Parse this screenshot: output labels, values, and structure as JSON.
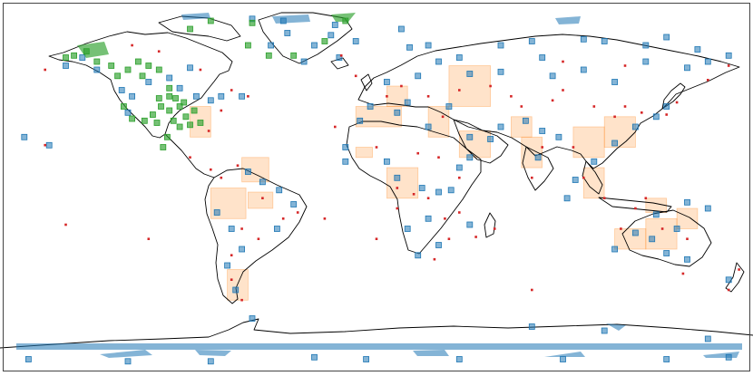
{
  "map": {
    "projection": "plate-carree",
    "extent": {
      "lon_range": [
        -180,
        180
      ],
      "lat_range": [
        -90,
        90
      ]
    },
    "coastline_color": "#000000",
    "frame_color": "#444444",
    "background": "#ffffff"
  },
  "legend": {
    "visible": false
  },
  "styles": {
    "blue": {
      "fill": "#1f77b4",
      "stroke": "#1f77b4",
      "opacity": 0.55
    },
    "green": {
      "fill": "#2ca02c",
      "stroke": "#2ca02c",
      "opacity": 0.65
    },
    "orange": {
      "fill": "#ff7f0e",
      "stroke": "#ff7f0e",
      "opacity": 0.22
    },
    "red_point": {
      "fill": "#d62728"
    }
  },
  "layers": {
    "blue_sites": [
      [
        -170,
        25
      ],
      [
        -158,
        21
      ],
      [
        -150,
        60
      ],
      [
        -142,
        64
      ],
      [
        -135,
        58
      ],
      [
        -123,
        48
      ],
      [
        -120,
        37
      ],
      [
        -118,
        45
      ],
      [
        -110,
        52
      ],
      [
        -100,
        54
      ],
      [
        -95,
        49
      ],
      [
        -90,
        59
      ],
      [
        -87,
        45
      ],
      [
        -80,
        43
      ],
      [
        -75,
        45
      ],
      [
        -65,
        45
      ],
      [
        -70,
        -20
      ],
      [
        -77,
        -12
      ],
      [
        -62,
        8
      ],
      [
        -55,
        3
      ],
      [
        -47,
        -1
      ],
      [
        -40,
        -8
      ],
      [
        -48,
        -20
      ],
      [
        -65,
        -30
      ],
      [
        -72,
        -38
      ],
      [
        -68,
        -50
      ],
      [
        -60,
        -64
      ],
      [
        -35,
        62
      ],
      [
        -30,
        70
      ],
      [
        -18,
        64
      ],
      [
        -51,
        70
      ],
      [
        -43,
        76
      ],
      [
        -20,
        80
      ],
      [
        -22,
        75
      ],
      [
        -10,
        72
      ],
      [
        -60,
        83
      ],
      [
        -45,
        82
      ],
      [
        12,
        78
      ],
      [
        16,
        69
      ],
      [
        25,
        70
      ],
      [
        30,
        62
      ],
      [
        40,
        64
      ],
      [
        60,
        70
      ],
      [
        75,
        72
      ],
      [
        100,
        73
      ],
      [
        110,
        72
      ],
      [
        130,
        70
      ],
      [
        140,
        74
      ],
      [
        155,
        68
      ],
      [
        160,
        62
      ],
      [
        170,
        65
      ],
      [
        150,
        59
      ],
      [
        130,
        62
      ],
      [
        100,
        58
      ],
      [
        115,
        52
      ],
      [
        85,
        55
      ],
      [
        80,
        64
      ],
      [
        60,
        57
      ],
      [
        45,
        56
      ],
      [
        20,
        55
      ],
      [
        5,
        52
      ],
      [
        -3,
        40
      ],
      [
        15,
        42
      ],
      [
        35,
        40
      ],
      [
        25,
        30
      ],
      [
        10,
        37
      ],
      [
        -8,
        33
      ],
      [
        -15,
        20
      ],
      [
        -15,
        13
      ],
      [
        5,
        13
      ],
      [
        10,
        5
      ],
      [
        22,
        0
      ],
      [
        30,
        -2
      ],
      [
        36,
        -1
      ],
      [
        40,
        10
      ],
      [
        45,
        15
      ],
      [
        55,
        24
      ],
      [
        45,
        25
      ],
      [
        60,
        30
      ],
      [
        72,
        33
      ],
      [
        80,
        28
      ],
      [
        88,
        25
      ],
      [
        78,
        15
      ],
      [
        92,
        -5
      ],
      [
        96,
        4
      ],
      [
        105,
        13
      ],
      [
        115,
        22
      ],
      [
        125,
        30
      ],
      [
        135,
        35
      ],
      [
        140,
        40
      ],
      [
        30,
        -28
      ],
      [
        20,
        -33
      ],
      [
        15,
        -20
      ],
      [
        25,
        -15
      ],
      [
        45,
        -18
      ],
      [
        115,
        -30
      ],
      [
        125,
        -22
      ],
      [
        133,
        -25
      ],
      [
        140,
        -32
      ],
      [
        150,
        -35
      ],
      [
        145,
        -20
      ],
      [
        135,
        -13
      ],
      [
        150,
        -7
      ],
      [
        160,
        -10
      ],
      [
        170,
        -45
      ],
      [
        -168,
        -84
      ],
      [
        -120,
        -85
      ],
      [
        -80,
        -85
      ],
      [
        -30,
        -83
      ],
      [
        40,
        -84
      ],
      [
        90,
        -84
      ],
      [
        140,
        -84
      ],
      [
        170,
        -83
      ],
      [
        -5,
        -84
      ],
      [
        110,
        -70
      ],
      [
        160,
        -74
      ],
      [
        75,
        -68
      ]
    ],
    "green_sites": [
      [
        -150,
        64
      ],
      [
        -146,
        65
      ],
      [
        -140,
        67
      ],
      [
        -135,
        62
      ],
      [
        -128,
        60
      ],
      [
        -125,
        55
      ],
      [
        -120,
        58
      ],
      [
        -115,
        62
      ],
      [
        -110,
        60
      ],
      [
        -113,
        55
      ],
      [
        -105,
        58
      ],
      [
        -100,
        49
      ],
      [
        -100,
        38
      ],
      [
        -95,
        40
      ],
      [
        -92,
        35
      ],
      [
        -93,
        42
      ],
      [
        -88,
        38
      ],
      [
        -90,
        31
      ],
      [
        -85,
        32
      ],
      [
        -95,
        30
      ],
      [
        -98,
        33
      ],
      [
        -104,
        40
      ],
      [
        -108,
        36
      ],
      [
        -112,
        33
      ],
      [
        -118,
        34
      ],
      [
        -122,
        40
      ],
      [
        -106,
        32
      ],
      [
        -101,
        25
      ],
      [
        -103,
        20
      ],
      [
        -100,
        45
      ],
      [
        -97,
        44
      ],
      [
        -105,
        44
      ],
      [
        -62,
        70
      ],
      [
        -52,
        65
      ],
      [
        -40,
        65
      ],
      [
        -25,
        72
      ],
      [
        -15,
        82
      ],
      [
        -60,
        81
      ],
      [
        -80,
        82
      ],
      [
        -90,
        78
      ]
    ],
    "red_points": [
      [
        -160,
        58
      ],
      [
        -118,
        70
      ],
      [
        -105,
        67
      ],
      [
        -85,
        58
      ],
      [
        -70,
        48
      ],
      [
        -62,
        45
      ],
      [
        -75,
        38
      ],
      [
        -81,
        28
      ],
      [
        -90,
        15
      ],
      [
        -80,
        9
      ],
      [
        -75,
        5
      ],
      [
        -67,
        11
      ],
      [
        -55,
        -5
      ],
      [
        -45,
        -15
      ],
      [
        -38,
        -12
      ],
      [
        -65,
        -20
      ],
      [
        -57,
        -25
      ],
      [
        -70,
        -33
      ],
      [
        -70,
        -45
      ],
      [
        -65,
        -55
      ],
      [
        -17,
        65
      ],
      [
        -10,
        55
      ],
      [
        5,
        45
      ],
      [
        12,
        50
      ],
      [
        25,
        45
      ],
      [
        32,
        35
      ],
      [
        40,
        48
      ],
      [
        55,
        50
      ],
      [
        65,
        45
      ],
      [
        70,
        40
      ],
      [
        85,
        43
      ],
      [
        90,
        48
      ],
      [
        105,
        40
      ],
      [
        115,
        35
      ],
      [
        120,
        40
      ],
      [
        128,
        37
      ],
      [
        140,
        36
      ],
      [
        145,
        42
      ],
      [
        160,
        53
      ],
      [
        170,
        60
      ],
      [
        120,
        60
      ],
      [
        90,
        62
      ],
      [
        -20,
        30
      ],
      [
        0,
        20
      ],
      [
        20,
        17
      ],
      [
        30,
        15
      ],
      [
        40,
        5
      ],
      [
        10,
        0
      ],
      [
        25,
        -5
      ],
      [
        33,
        -15
      ],
      [
        35,
        -25
      ],
      [
        40,
        -12
      ],
      [
        18,
        -3
      ],
      [
        10,
        -10
      ],
      [
        28,
        -35
      ],
      [
        48,
        -24
      ],
      [
        57,
        -20
      ],
      [
        75,
        5
      ],
      [
        80,
        20
      ],
      [
        95,
        20
      ],
      [
        100,
        5
      ],
      [
        110,
        -5
      ],
      [
        125,
        -10
      ],
      [
        130,
        -5
      ],
      [
        118,
        -20
      ],
      [
        138,
        -20
      ],
      [
        150,
        -25
      ],
      [
        148,
        -42
      ],
      [
        175,
        -40
      ],
      [
        170,
        -50
      ],
      [
        -150,
        -18
      ],
      [
        -110,
        -25
      ],
      [
        -25,
        -15
      ],
      [
        75,
        -50
      ],
      [
        0,
        -25
      ],
      [
        -160,
        21
      ]
    ],
    "orange_regions": [
      [
        -90,
        -80,
        25,
        40
      ],
      [
        -65,
        -52,
        3,
        15
      ],
      [
        -80,
        -63,
        -15,
        0
      ],
      [
        -62,
        -50,
        -10,
        -2
      ],
      [
        -72,
        -62,
        -55,
        -40
      ],
      [
        -10,
        -2,
        15,
        20
      ],
      [
        5,
        20,
        -5,
        10
      ],
      [
        -10,
        12,
        30,
        40
      ],
      [
        5,
        15,
        40,
        50
      ],
      [
        25,
        35,
        25,
        40
      ],
      [
        35,
        55,
        40,
        60
      ],
      [
        40,
        55,
        15,
        28
      ],
      [
        65,
        75,
        25,
        35
      ],
      [
        70,
        80,
        10,
        25
      ],
      [
        95,
        110,
        15,
        30
      ],
      [
        100,
        110,
        -5,
        10
      ],
      [
        110,
        125,
        20,
        35
      ],
      [
        130,
        140,
        -12,
        -5
      ],
      [
        115,
        130,
        -30,
        -20
      ],
      [
        130,
        145,
        -30,
        -15
      ],
      [
        145,
        155,
        -20,
        -10
      ]
    ]
  }
}
